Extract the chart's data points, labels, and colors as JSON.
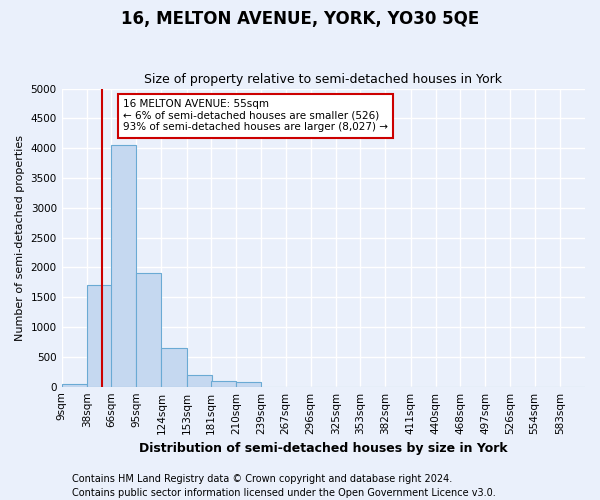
{
  "title": "16, MELTON AVENUE, YORK, YO30 5QE",
  "subtitle": "Size of property relative to semi-detached houses in York",
  "xlabel": "Distribution of semi-detached houses by size in York",
  "ylabel": "Number of semi-detached properties",
  "footnote1": "Contains HM Land Registry data © Crown copyright and database right 2024.",
  "footnote2": "Contains public sector information licensed under the Open Government Licence v3.0.",
  "annotation_title": "16 MELTON AVENUE: 55sqm",
  "annotation_line1": "← 6% of semi-detached houses are smaller (526)",
  "annotation_line2": "93% of semi-detached houses are larger (8,027) →",
  "property_size": 55,
  "bin_labels": [
    "9sqm",
    "38sqm",
    "66sqm",
    "95sqm",
    "124sqm",
    "153sqm",
    "181sqm",
    "210sqm",
    "239sqm",
    "267sqm",
    "296sqm",
    "325sqm",
    "353sqm",
    "382sqm",
    "411sqm",
    "440sqm",
    "468sqm",
    "497sqm",
    "526sqm",
    "554sqm",
    "583sqm"
  ],
  "bin_edges": [
    9,
    38,
    66,
    95,
    124,
    153,
    181,
    210,
    239,
    267,
    296,
    325,
    353,
    382,
    411,
    440,
    468,
    497,
    526,
    554,
    583
  ],
  "bar_values": [
    40,
    1700,
    4050,
    1900,
    650,
    200,
    100,
    75,
    0,
    0,
    0,
    0,
    0,
    0,
    0,
    0,
    0,
    0,
    0,
    0,
    0
  ],
  "bar_color": "#c5d8f0",
  "bar_edge_color": "#6aaad4",
  "vline_x": 55,
  "vline_color": "#cc0000",
  "ylim": [
    0,
    5000
  ],
  "annotation_box_color": "white",
  "annotation_box_edge": "#cc0000",
  "background_color": "#eaf0fb",
  "grid_color": "white",
  "title_fontsize": 12,
  "subtitle_fontsize": 9,
  "ylabel_fontsize": 8,
  "xlabel_fontsize": 9,
  "footnote_fontsize": 7,
  "tick_fontsize": 7.5
}
